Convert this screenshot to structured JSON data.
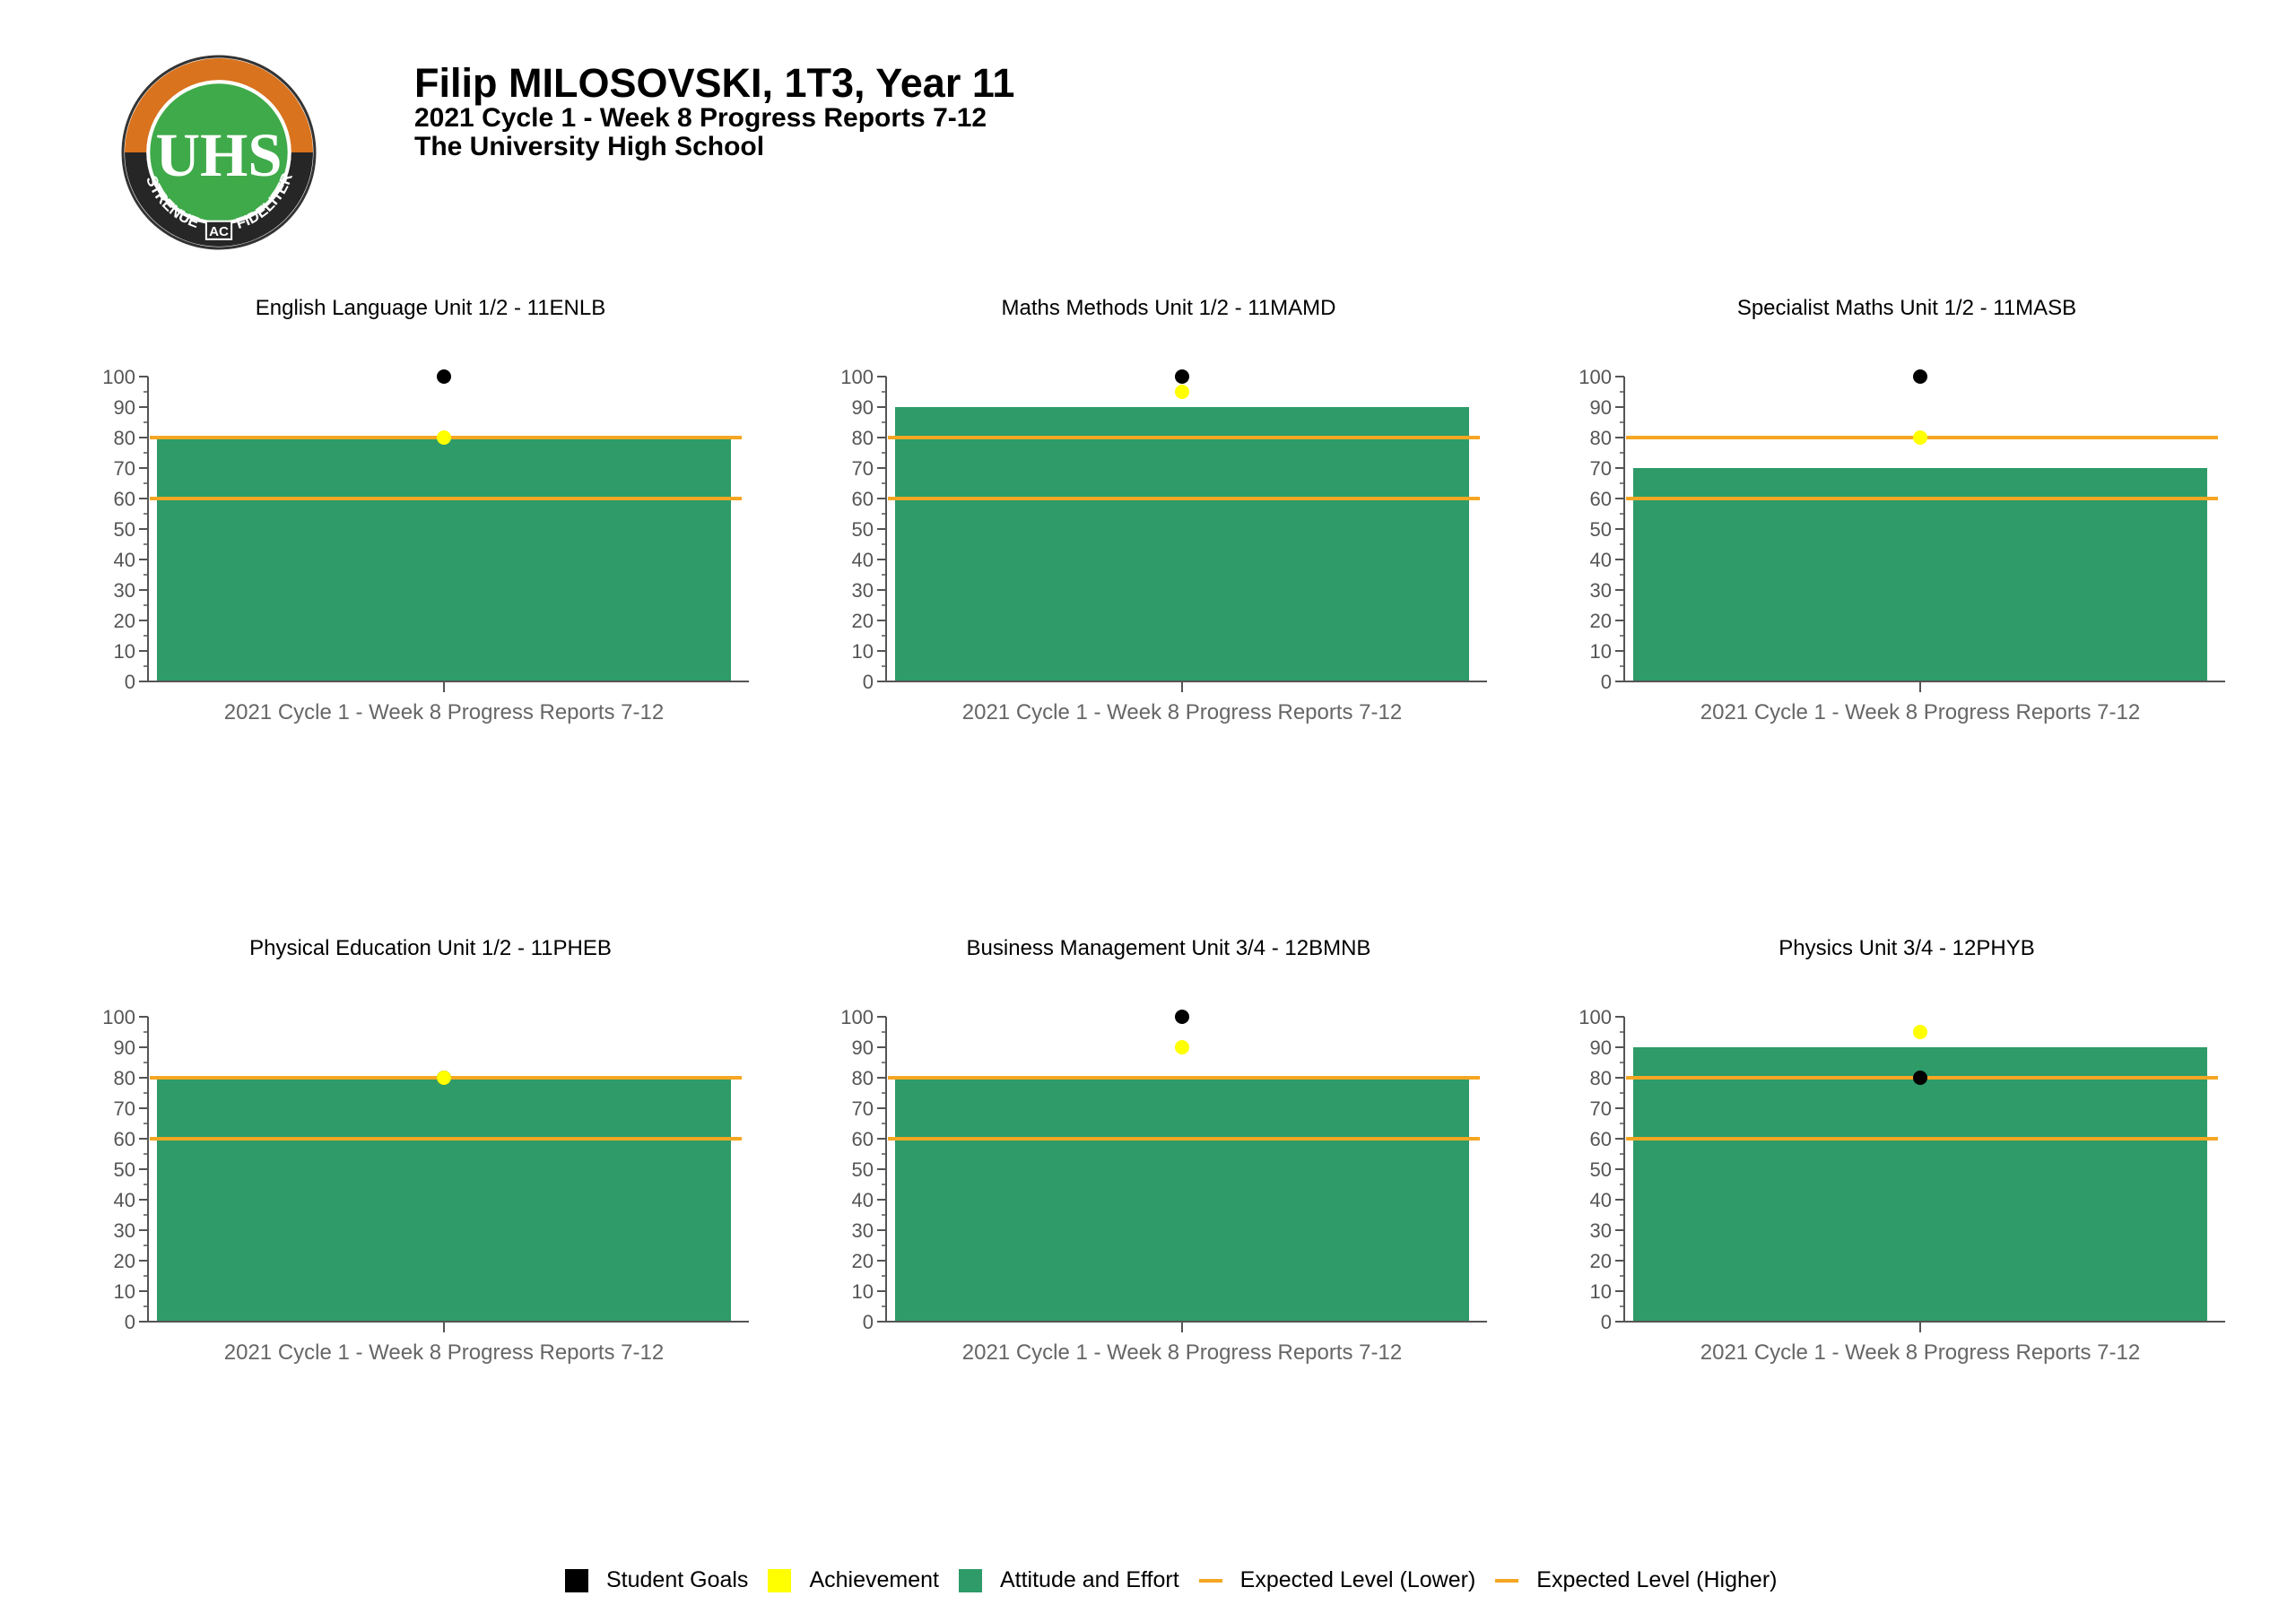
{
  "header": {
    "name": "Filip MILOSOVSKI, 1T3, Year 11",
    "report": "2021 Cycle 1 - Week 8 Progress Reports 7-12",
    "school": "The University High School"
  },
  "logo": {
    "monogram": "UHS",
    "motto_left": "STRENUE",
    "motto_center": "AC",
    "motto_right": "FIDELITER"
  },
  "colors": {
    "attitude": "#2e9b68",
    "achievement": "#ffff00",
    "goals": "#000000",
    "expected": "#f5a623",
    "logo_orange": "#d9731e",
    "logo_green": "#3faa49"
  },
  "legend": {
    "goals": "Student Goals",
    "achievement": "Achievement",
    "attitude": "Attitude and Effort",
    "expected_lower": "Expected Level (Lower)",
    "expected_higher": "Expected Level (Higher)"
  },
  "chart_data": [
    {
      "type": "bar",
      "title": "English Language Unit 1/2 - 11ENLB",
      "categories": [
        "2021 Cycle 1 - Week 8 Progress Reports 7-12"
      ],
      "attitude_effort": 80,
      "achievement": 80,
      "student_goals": 100,
      "expected_lower": 60,
      "expected_higher": 80,
      "ylim": [
        0,
        100
      ],
      "yticks": [
        0,
        10,
        20,
        30,
        40,
        50,
        60,
        70,
        80,
        90,
        100
      ]
    },
    {
      "type": "bar",
      "title": "Maths Methods Unit 1/2 - 11MAMD",
      "categories": [
        "2021 Cycle 1 - Week 8 Progress Reports 7-12"
      ],
      "attitude_effort": 90,
      "achievement": 95,
      "student_goals": 100,
      "expected_lower": 60,
      "expected_higher": 80,
      "ylim": [
        0,
        100
      ],
      "yticks": [
        0,
        10,
        20,
        30,
        40,
        50,
        60,
        70,
        80,
        90,
        100
      ]
    },
    {
      "type": "bar",
      "title": "Specialist Maths Unit 1/2 - 11MASB",
      "categories": [
        "2021 Cycle 1 - Week 8 Progress Reports 7-12"
      ],
      "attitude_effort": 70,
      "achievement": 80,
      "student_goals": 100,
      "expected_lower": 60,
      "expected_higher": 80,
      "ylim": [
        0,
        100
      ],
      "yticks": [
        0,
        10,
        20,
        30,
        40,
        50,
        60,
        70,
        80,
        90,
        100
      ]
    },
    {
      "type": "bar",
      "title": "Physical Education Unit 1/2 - 11PHEB",
      "categories": [
        "2021 Cycle 1 - Week 8 Progress Reports 7-12"
      ],
      "attitude_effort": 80,
      "achievement": 80,
      "student_goals": 80,
      "expected_lower": 60,
      "expected_higher": 80,
      "ylim": [
        0,
        100
      ],
      "yticks": [
        0,
        10,
        20,
        30,
        40,
        50,
        60,
        70,
        80,
        90,
        100
      ]
    },
    {
      "type": "bar",
      "title": "Business Management Unit 3/4 - 12BMNB",
      "categories": [
        "2021 Cycle 1 - Week 8 Progress Reports 7-12"
      ],
      "attitude_effort": 80,
      "achievement": 90,
      "student_goals": 100,
      "expected_lower": 60,
      "expected_higher": 80,
      "ylim": [
        0,
        100
      ],
      "yticks": [
        0,
        10,
        20,
        30,
        40,
        50,
        60,
        70,
        80,
        90,
        100
      ]
    },
    {
      "type": "bar",
      "title": "Physics Unit 3/4 - 12PHYB",
      "categories": [
        "2021 Cycle 1 - Week 8 Progress Reports 7-12"
      ],
      "attitude_effort": 90,
      "achievement": 95,
      "student_goals": 80,
      "expected_lower": 60,
      "expected_higher": 80,
      "ylim": [
        0,
        100
      ],
      "yticks": [
        0,
        10,
        20,
        30,
        40,
        50,
        60,
        70,
        80,
        90,
        100
      ]
    }
  ]
}
